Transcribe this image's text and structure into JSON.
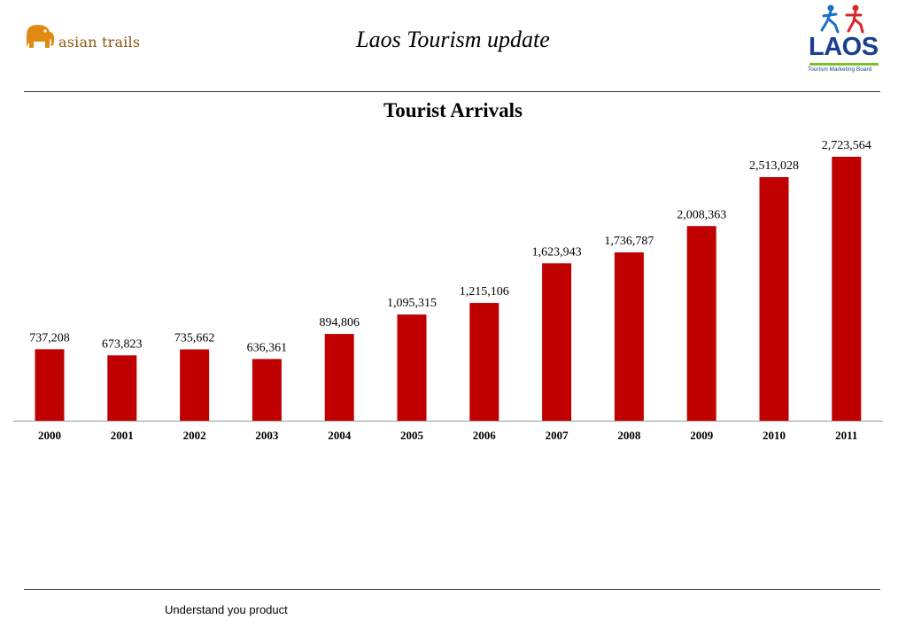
{
  "header": {
    "title": "Laos Tourism update",
    "left_logo": {
      "text": "asian trails",
      "icon": "elephant-icon",
      "color": "#e08a12"
    },
    "right_logo": {
      "text": "LAOS",
      "tagline": "Tourism Marketing Board",
      "icon": "people-icon"
    }
  },
  "chart_data": {
    "type": "bar",
    "title": "Tourist Arrivals",
    "categories": [
      "2000",
      "2001",
      "2002",
      "2003",
      "2004",
      "2005",
      "2006",
      "2007",
      "2008",
      "2009",
      "2010",
      "2011"
    ],
    "values": [
      737208,
      673823,
      735662,
      636361,
      894806,
      1095315,
      1215106,
      1623943,
      1736787,
      2008363,
      2513028,
      2723564
    ],
    "labels": [
      "737,208",
      "673,823",
      "735,662",
      "636,361",
      "894,806",
      "1,095,315",
      "1,215,106",
      "1,623,943",
      "1,736,787",
      "2,008,363",
      "2,513,028",
      "2,723,564"
    ],
    "bar_color": "#c00000",
    "xlabel": "",
    "ylabel": "",
    "grid": false
  },
  "footer": {
    "text": "Understand you product"
  }
}
